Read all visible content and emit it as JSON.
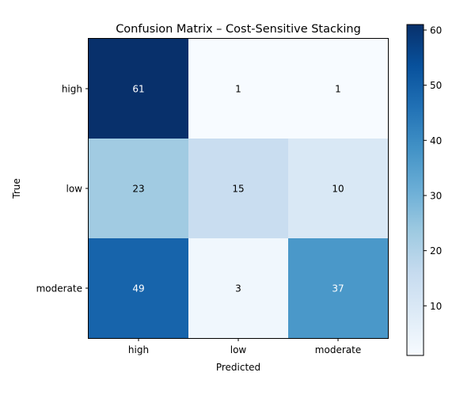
{
  "chart_data": {
    "type": "heatmap",
    "title": "Confusion Matrix – Cost-Sensitive Stacking",
    "xlabel": "Predicted",
    "ylabel": "True",
    "x_categories": [
      "high",
      "low",
      "moderate"
    ],
    "y_categories": [
      "high",
      "low",
      "moderate"
    ],
    "values": [
      [
        61,
        1,
        1
      ],
      [
        23,
        15,
        10
      ],
      [
        49,
        3,
        37
      ]
    ],
    "colormap": "Blues",
    "color_range": [
      1,
      61
    ],
    "colorbar_ticks": [
      10,
      20,
      30,
      40,
      50,
      60
    ],
    "grid": false
  }
}
